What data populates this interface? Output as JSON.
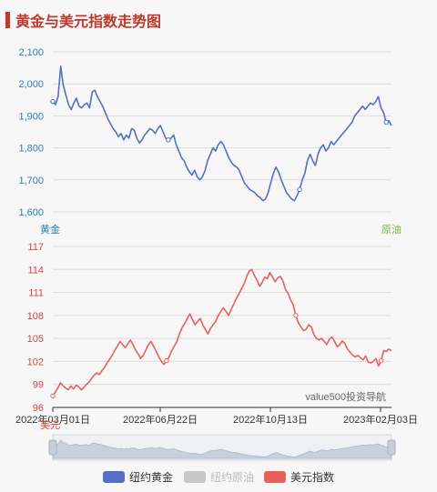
{
  "title": "黄金与美元指数走势图",
  "colors": {
    "gold": "#5470c6",
    "oil": "#c8c8c8",
    "usd": "#e8605a",
    "title": "#c0392b",
    "gold_axis": "#2d7fb8",
    "oil_axis": "#7cb342",
    "usd_axis": "#d9463f"
  },
  "labels": {
    "gold_axis": "黄金",
    "oil_axis": "原油",
    "usd_axis": "美元",
    "watermark": "value500投资导航"
  },
  "chart_data": [
    {
      "type": "line",
      "series": [
        {
          "name": "纽约黄金",
          "values": [
            1945,
            1935,
            1960,
            2055,
            1995,
            1965,
            1935,
            1920,
            1940,
            1955,
            1930,
            1925,
            1935,
            1940,
            1925,
            1975,
            1980,
            1960,
            1945,
            1930,
            1910,
            1890,
            1875,
            1860,
            1850,
            1835,
            1845,
            1825,
            1840,
            1830,
            1860,
            1855,
            1830,
            1815,
            1825,
            1840,
            1850,
            1860,
            1855,
            1845,
            1860,
            1870,
            1850,
            1830,
            1825,
            1830,
            1840,
            1810,
            1790,
            1770,
            1760,
            1740,
            1725,
            1715,
            1730,
            1710,
            1700,
            1710,
            1730,
            1760,
            1780,
            1800,
            1790,
            1810,
            1820,
            1810,
            1790,
            1770,
            1755,
            1745,
            1740,
            1730,
            1710,
            1690,
            1680,
            1670,
            1665,
            1660,
            1650,
            1645,
            1635,
            1640,
            1660,
            1690,
            1720,
            1740,
            1725,
            1700,
            1680,
            1660,
            1650,
            1640,
            1635,
            1650,
            1670,
            1700,
            1720,
            1760,
            1780,
            1760,
            1745,
            1780,
            1800,
            1810,
            1790,
            1800,
            1820,
            1810,
            1820,
            1830,
            1840,
            1850,
            1860,
            1870,
            1880,
            1900,
            1910,
            1920,
            1930,
            1920,
            1930,
            1940,
            1935,
            1945,
            1960,
            1925,
            1910,
            1880,
            1885,
            1870
          ]
        },
        {
          "name": "纽约原油",
          "values": []
        }
      ],
      "x_labels": [
        "2022年03月01日",
        "2022年06月22日",
        "2022年10月13日",
        "2023年02月03日"
      ],
      "ylim": [
        1600,
        2100
      ],
      "yticks": [
        "1,600",
        "1,700",
        "1,800",
        "1,900",
        "2,000",
        "2,100"
      ],
      "grid": true
    },
    {
      "type": "line",
      "series": [
        {
          "name": "美元指数",
          "values": [
            97.5,
            98.0,
            98.6,
            99.2,
            98.8,
            98.5,
            98.3,
            98.8,
            98.4,
            98.9,
            98.7,
            98.3,
            98.6,
            99.0,
            99.3,
            99.8,
            100.2,
            100.5,
            100.3,
            100.8,
            101.2,
            101.8,
            102.3,
            102.8,
            103.5,
            104.0,
            104.6,
            104.2,
            103.8,
            104.3,
            104.8,
            104.2,
            103.5,
            103.0,
            102.4,
            102.8,
            103.5,
            104.2,
            104.6,
            104.0,
            103.3,
            102.6,
            102.0,
            101.6,
            102.1,
            102.6,
            103.4,
            104.0,
            104.6,
            105.6,
            106.4,
            106.9,
            107.6,
            108.2,
            107.5,
            106.8,
            107.2,
            107.6,
            106.8,
            106.2,
            105.6,
            106.3,
            106.8,
            107.2,
            108.0,
            108.5,
            109.0,
            108.5,
            108.0,
            108.8,
            109.5,
            110.2,
            110.8,
            111.5,
            112.1,
            113.1,
            113.8,
            114.0,
            113.2,
            112.6,
            111.8,
            112.3,
            113.0,
            112.8,
            113.6,
            113.0,
            112.4,
            112.9,
            113.1,
            112.5,
            111.4,
            110.9,
            110.0,
            109.4,
            108.0,
            107.0,
            106.5,
            106.0,
            106.2,
            106.8,
            106.5,
            105.5,
            105.0,
            104.8,
            105.0,
            104.6,
            104.2,
            104.9,
            105.2,
            104.6,
            103.9,
            104.2,
            104.7,
            104.3,
            103.6,
            103.2,
            102.8,
            102.6,
            102.8,
            102.5,
            102.2,
            102.7,
            101.9,
            101.8,
            102.0,
            102.4,
            101.4,
            102.1,
            103.4,
            103.3,
            103.6,
            103.4
          ]
        }
      ],
      "x_labels": [
        "2022年03月01日",
        "2022年06月22日",
        "2022年10月13日",
        "2023年02月03日"
      ],
      "ylim": [
        96,
        117
      ],
      "yticks": [
        "96",
        "99",
        "102",
        "105",
        "108",
        "111",
        "114",
        "117"
      ],
      "grid": true
    }
  ],
  "legend": [
    {
      "label": "纽约黄金",
      "color": "#5470c6",
      "active": true
    },
    {
      "label": "纽约原油",
      "color": "#c8c8c8",
      "active": false
    },
    {
      "label": "美元指数",
      "color": "#e8605a",
      "active": true
    }
  ]
}
